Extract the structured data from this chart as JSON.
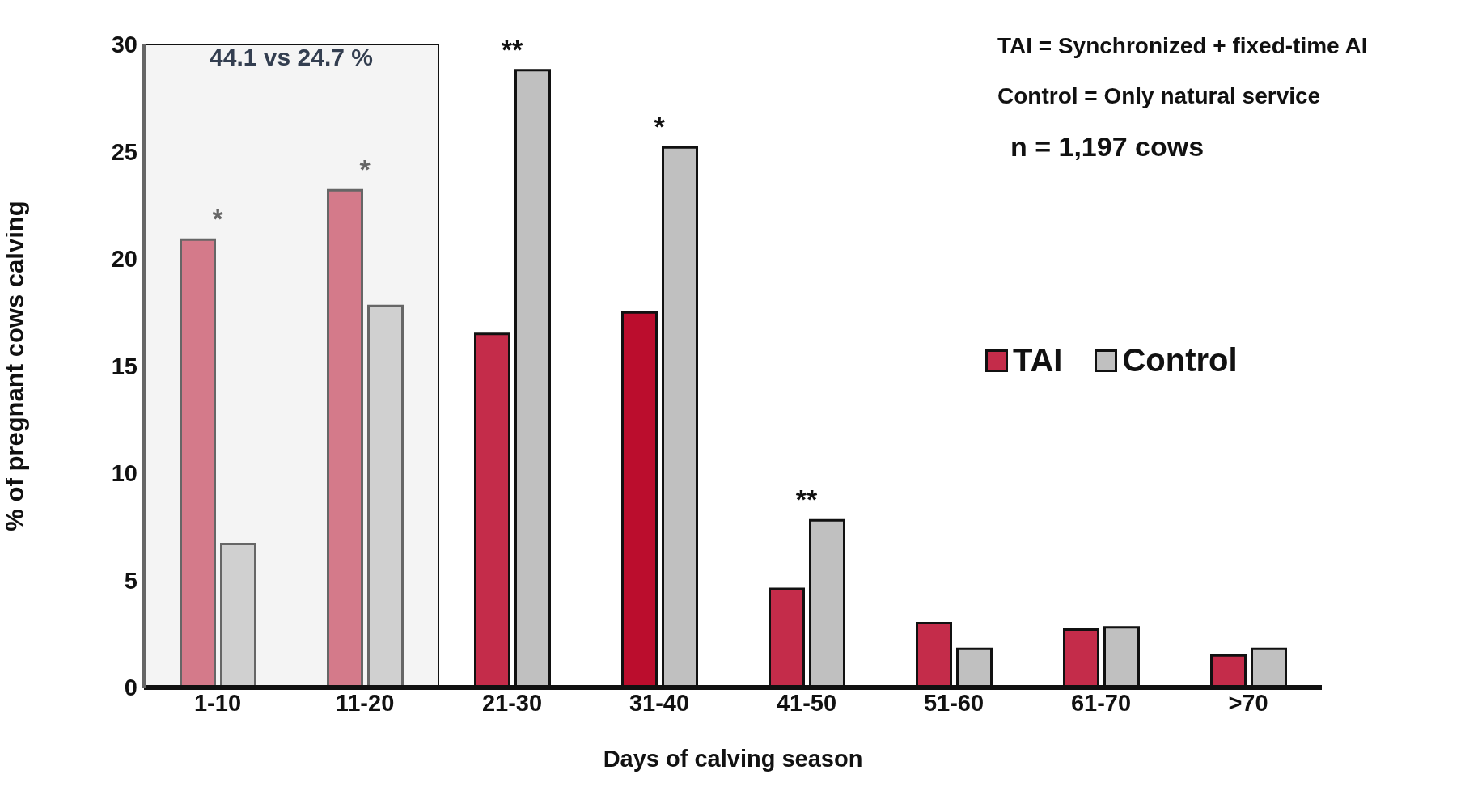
{
  "chart_data": {
    "type": "bar",
    "xlabel": "Days of calving season",
    "ylabel": "% of pregnant cows calving",
    "categories": [
      "1-10",
      "11-20",
      "21-30",
      "31-40",
      "41-50",
      "51-60",
      "61-70",
      ">70"
    ],
    "series": [
      {
        "name": "TAI",
        "color": "#c42c4a",
        "colors": [
          "#d47a8a",
          "#d47a8a",
          "#c42c4a",
          "#bb0d2d",
          "#c42c4a",
          "#c42c4a",
          "#c42c4a",
          "#c42c4a"
        ],
        "values": [
          20.9,
          23.2,
          16.5,
          17.5,
          4.6,
          3.0,
          2.7,
          1.5
        ]
      },
      {
        "name": "Control",
        "color": "#c0c0c0",
        "colors": [
          "#d0d0d0",
          "#d0d0d0",
          "#c0c0c0",
          "#c0c0c0",
          "#c0c0c0",
          "#c0c0c0",
          "#c0c0c0",
          "#c0c0c0"
        ],
        "values": [
          6.7,
          17.8,
          28.8,
          25.2,
          7.8,
          1.8,
          2.8,
          1.8
        ]
      }
    ],
    "ylim": [
      0,
      30
    ],
    "yticks": [
      0,
      5,
      10,
      15,
      20,
      25,
      30
    ],
    "grid": false,
    "legend": "right",
    "bands": [
      {
        "axis": "x",
        "from": "1-10",
        "to": "11-20",
        "label": "44.1 vs 24.7 %",
        "color": "#f4f4f4"
      }
    ],
    "annotations": [
      {
        "text": "*",
        "x": "1-10",
        "y": 20.9
      },
      {
        "text": "*",
        "x": "11-20",
        "y": 23.2
      },
      {
        "text": "**",
        "x": "21-30",
        "y": 28.8
      },
      {
        "text": "*",
        "x": "31-40",
        "y": 25.2
      },
      {
        "text": "**",
        "x": "41-50",
        "y": 7.8
      },
      "TAI = Synchronized + fixed-time AI",
      "Control = Only natural service",
      "n = 1,197 cows"
    ]
  }
}
